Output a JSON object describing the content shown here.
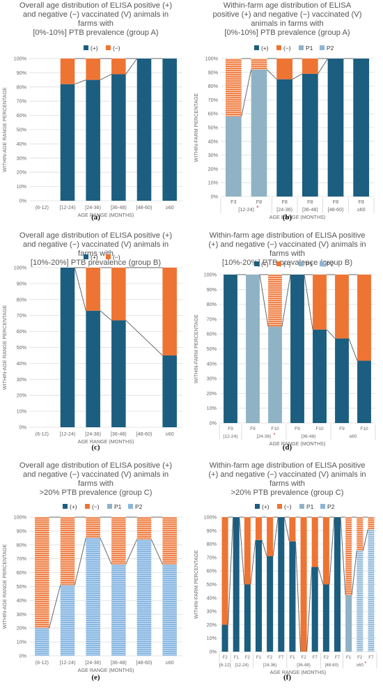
{
  "colors": {
    "positive": "#1b5e80",
    "negative": "#ee7433",
    "p1": "#8fb3c4",
    "p2": "#8ab6d8",
    "e_positive": "#7fb2e0",
    "hatch_line": "#ffffff",
    "gridline": "#dddddd",
    "axis_text": "#666666",
    "connector": "#666666",
    "star": "#e02020"
  },
  "chart_data": [
    {
      "id": "a",
      "type": "bar",
      "stacked": true,
      "title": "Overall age distribution of ELISA positive (+)\nand negative (−) vaccinated (V) animals in\nfarms with\n[0%-10%]  PTB prevalence (group A)",
      "legend": [
        {
          "label": "(+)",
          "key": "positive"
        },
        {
          "label": "(−)",
          "key": "negative"
        }
      ],
      "legend_position": "top",
      "ylabel": "WITHIN-AGE RANGE PERCENTAGE",
      "xlabel": "AGE RANGE (MONTHS)",
      "yticks": [
        "0%",
        "10%",
        "20%",
        "30%",
        "40%",
        "50%",
        "60%",
        "70%",
        "80%",
        "90%",
        "100%"
      ],
      "ylim": [
        0,
        100
      ],
      "grid": true,
      "categories": [
        "(6-12)",
        "[12-24)",
        "[24-36)",
        "[36-48)",
        "[48-60)",
        "≥60"
      ],
      "positive_values": [
        null,
        82,
        85,
        89,
        100,
        100
      ],
      "negative_values": [
        null,
        18,
        15,
        11,
        0,
        0
      ],
      "caption": "(a)"
    },
    {
      "id": "b",
      "type": "bar",
      "stacked": true,
      "title": "Within-farm age distribution of ELISA\npositive (+) and negative (−) vaccinated (V)\nanimals in farms with\n[0%-10%]  PTB prevalence (group A)",
      "legend": [
        {
          "label": "(+)",
          "key": "positive"
        },
        {
          "label": "(−)",
          "key": "negative"
        },
        {
          "label": "P1",
          "key": "p1"
        },
        {
          "label": "P2",
          "key": "p2"
        }
      ],
      "legend_position": "top",
      "ylabel": "WITHIN-FARM PERCENTAGE",
      "xlabel": "AGE RANGE (MONTHS)",
      "yticks": [
        "0%",
        "10%",
        "20%",
        "30%",
        "40%",
        "50%",
        "60%",
        "70%",
        "80%",
        "90%",
        "100%"
      ],
      "ylim": [
        0,
        100
      ],
      "grid": true,
      "bars": [
        {
          "farm": "F3",
          "positive": 58,
          "negative": 42,
          "style": "p1"
        },
        {
          "farm": "F8",
          "positive": 92,
          "negative": 8,
          "style": "p1"
        },
        {
          "farm": "F8",
          "positive": 85,
          "negative": 15,
          "style": "solid"
        },
        {
          "farm": "F8",
          "positive": 89,
          "negative": 11,
          "style": "solid"
        },
        {
          "farm": "F8",
          "positive": 100,
          "negative": 0,
          "style": "solid"
        },
        {
          "farm": "F8",
          "positive": 100,
          "negative": 0,
          "style": "solid"
        }
      ],
      "groups": [
        {
          "label": "[12-24)",
          "span": [
            0,
            1
          ],
          "star": true
        },
        {
          "label": "[24-36)",
          "span": [
            2,
            2
          ],
          "star": false
        },
        {
          "label": "[36-48)",
          "span": [
            3,
            3
          ],
          "star": false
        },
        {
          "label": "[48-60)",
          "span": [
            4,
            4
          ],
          "star": false
        },
        {
          "label": "≥60",
          "span": [
            5,
            5
          ],
          "star": false
        }
      ],
      "caption": "(b)"
    },
    {
      "id": "c",
      "type": "bar",
      "stacked": true,
      "title": "Overall age distribution of ELISA positive (+)\nand negative (−) vaccinated (V) animals in\nfarms with\n[10%-20%]  PTB prevalence (group B)",
      "legend": [
        {
          "label": "(+)",
          "key": "positive"
        },
        {
          "label": "(−)",
          "key": "negative"
        }
      ],
      "legend_position": "top",
      "ylabel": "WITHIN-AGE RANGE PERCENTAGE",
      "xlabel": "AGE RANGE (MONTHS)",
      "yticks": [
        "0%",
        "10%",
        "20%",
        "30%",
        "40%",
        "50%",
        "60%",
        "70%",
        "80%",
        "90%",
        "100%"
      ],
      "ylim": [
        0,
        100
      ],
      "grid": true,
      "categories": [
        "(6-12)",
        "[12-24)",
        "[24-36)",
        "[36-48)",
        "[48-60)",
        "≥60"
      ],
      "positive_values": [
        null,
        100,
        73,
        67,
        null,
        45
      ],
      "negative_values": [
        null,
        0,
        27,
        33,
        null,
        55
      ],
      "caption": "(c)"
    },
    {
      "id": "d",
      "type": "bar",
      "stacked": true,
      "title": "Within-farm age distribution of ELISA positive\n(+) and negative (−) vaccinated (V) animals in\nfarms with\n[10%-20%]  PTB prevalence (group B)",
      "legend": [
        {
          "label": "(+)",
          "key": "positive"
        },
        {
          "label": "(−)",
          "key": "negative"
        },
        {
          "label": "P1",
          "key": "p1"
        },
        {
          "label": "P2",
          "key": "p2"
        }
      ],
      "legend_position": "top",
      "ylabel": "WITHIN-FARM PERCENTAGE",
      "xlabel": "AGE RANGE (MONTHS)",
      "yticks": [
        "0%",
        "10%",
        "20%",
        "30%",
        "40%",
        "50%",
        "60%",
        "70%",
        "80%",
        "90%",
        "100%"
      ],
      "ylim": [
        0,
        100
      ],
      "grid": true,
      "bars": [
        {
          "farm": "F9",
          "positive": 100,
          "negative": 0,
          "style": "solid"
        },
        {
          "farm": "F9",
          "positive": 100,
          "negative": 0,
          "style": "p1"
        },
        {
          "farm": "F10",
          "positive": 65,
          "negative": 35,
          "style": "p1"
        },
        {
          "farm": "F9",
          "positive": 100,
          "negative": 0,
          "style": "solid"
        },
        {
          "farm": "F10",
          "positive": 63,
          "negative": 37,
          "style": "solid"
        },
        {
          "farm": "F9",
          "positive": 57,
          "negative": 43,
          "style": "solid"
        },
        {
          "farm": "F10",
          "positive": 42,
          "negative": 58,
          "style": "solid"
        }
      ],
      "groups": [
        {
          "label": "[12-24)",
          "span": [
            0,
            0
          ],
          "star": false
        },
        {
          "label": "[24-36)",
          "span": [
            1,
            2
          ],
          "star": true
        },
        {
          "label": "[36-48)",
          "span": [
            3,
            4
          ],
          "star": false
        },
        {
          "label": "≥60",
          "span": [
            5,
            6
          ],
          "star": false
        }
      ],
      "caption": "(d)"
    },
    {
      "id": "e",
      "type": "bar",
      "stacked": true,
      "title": "Overall age distribution of ELISA positive (+)\nand negative (−) vaccinated (V) animals in\nfarms with\n>20% PTB prevalence (group C)",
      "legend": [
        {
          "label": "(+)",
          "key": "positive"
        },
        {
          "label": "(−)",
          "key": "negative"
        },
        {
          "label": "P1",
          "key": "p1"
        },
        {
          "label": "P2",
          "key": "p2"
        }
      ],
      "legend_position": "top",
      "ylabel": "WITHIN-AGE RANGE PERCENTAGE",
      "xlabel": "AGE RANGE (MONTHS)",
      "yticks": [
        "0%",
        "10%",
        "20%",
        "30%",
        "40%",
        "50%",
        "60%",
        "70%",
        "80%",
        "90%",
        "100%"
      ],
      "ylim": [
        0,
        100
      ],
      "grid": true,
      "categories": [
        "(6-12)",
        "[12-24)",
        "[24-36)",
        "[36-48)",
        "[48-60)",
        "≥60"
      ],
      "positive_values": [
        20,
        51,
        85,
        66,
        84,
        66
      ],
      "negative_values": [
        80,
        49,
        15,
        34,
        16,
        34
      ],
      "caption": "(e)"
    },
    {
      "id": "f",
      "type": "bar",
      "stacked": true,
      "title": "Within-farm age distribution of ELISA positive\n(+) and negative (−) vaccinated (V) animals in\nfarms with\n>20% PTB prevalence (group C)",
      "legend": [
        {
          "label": "(+)",
          "key": "positive"
        },
        {
          "label": "(−)",
          "key": "negative"
        },
        {
          "label": "P1",
          "key": "p1"
        },
        {
          "label": "P2",
          "key": "p2"
        }
      ],
      "legend_position": "top",
      "ylabel": "WITHIN-FARM PERCENTAGE",
      "xlabel": "AGE RANGE (MONTHS)",
      "yticks": [
        "0%",
        "10%",
        "20%",
        "30%",
        "40%",
        "50%",
        "60%",
        "70%",
        "80%",
        "90%",
        "100%"
      ],
      "ylim": [
        0,
        100
      ],
      "grid": true,
      "bars": [
        {
          "farm": "F2",
          "positive": 20,
          "negative": 80,
          "style": "solid"
        },
        {
          "farm": "F1",
          "positive": 100,
          "negative": 0,
          "style": "solid"
        },
        {
          "farm": "F2",
          "positive": 50,
          "negative": 50,
          "style": "solid"
        },
        {
          "farm": "F1",
          "positive": 83,
          "negative": 17,
          "style": "solid"
        },
        {
          "farm": "F2",
          "positive": 71,
          "negative": 29,
          "style": "solid"
        },
        {
          "farm": "F7",
          "positive": 100,
          "negative": 0,
          "style": "solid"
        },
        {
          "farm": "F1",
          "positive": 82,
          "negative": 18,
          "style": "solid"
        },
        {
          "farm": "F2",
          "positive": 0,
          "negative": 100,
          "style": "solid"
        },
        {
          "farm": "F7",
          "positive": 63,
          "negative": 37,
          "style": "solid"
        },
        {
          "farm": "F2",
          "positive": 50,
          "negative": 50,
          "style": "solid"
        },
        {
          "farm": "F7",
          "positive": 100,
          "negative": 0,
          "style": "solid"
        },
        {
          "farm": "F1",
          "positive": 42,
          "negative": 58,
          "style": "p1"
        },
        {
          "farm": "F2",
          "positive": 75,
          "negative": 25,
          "style": "p2"
        },
        {
          "farm": "F7",
          "positive": 91,
          "negative": 9,
          "style": "p2"
        }
      ],
      "groups": [
        {
          "label": "(6-12)",
          "span": [
            0,
            0
          ],
          "star": false
        },
        {
          "label": "[12-24)",
          "span": [
            1,
            2
          ],
          "star": false
        },
        {
          "label": "[24-36)",
          "span": [
            3,
            5
          ],
          "star": false
        },
        {
          "label": "[36-48)",
          "span": [
            6,
            8
          ],
          "star": false
        },
        {
          "label": "[48-60)",
          "span": [
            9,
            10
          ],
          "star": false
        },
        {
          "label": "≥60",
          "span": [
            11,
            13
          ],
          "star": true
        }
      ],
      "caption": "(f)"
    }
  ]
}
